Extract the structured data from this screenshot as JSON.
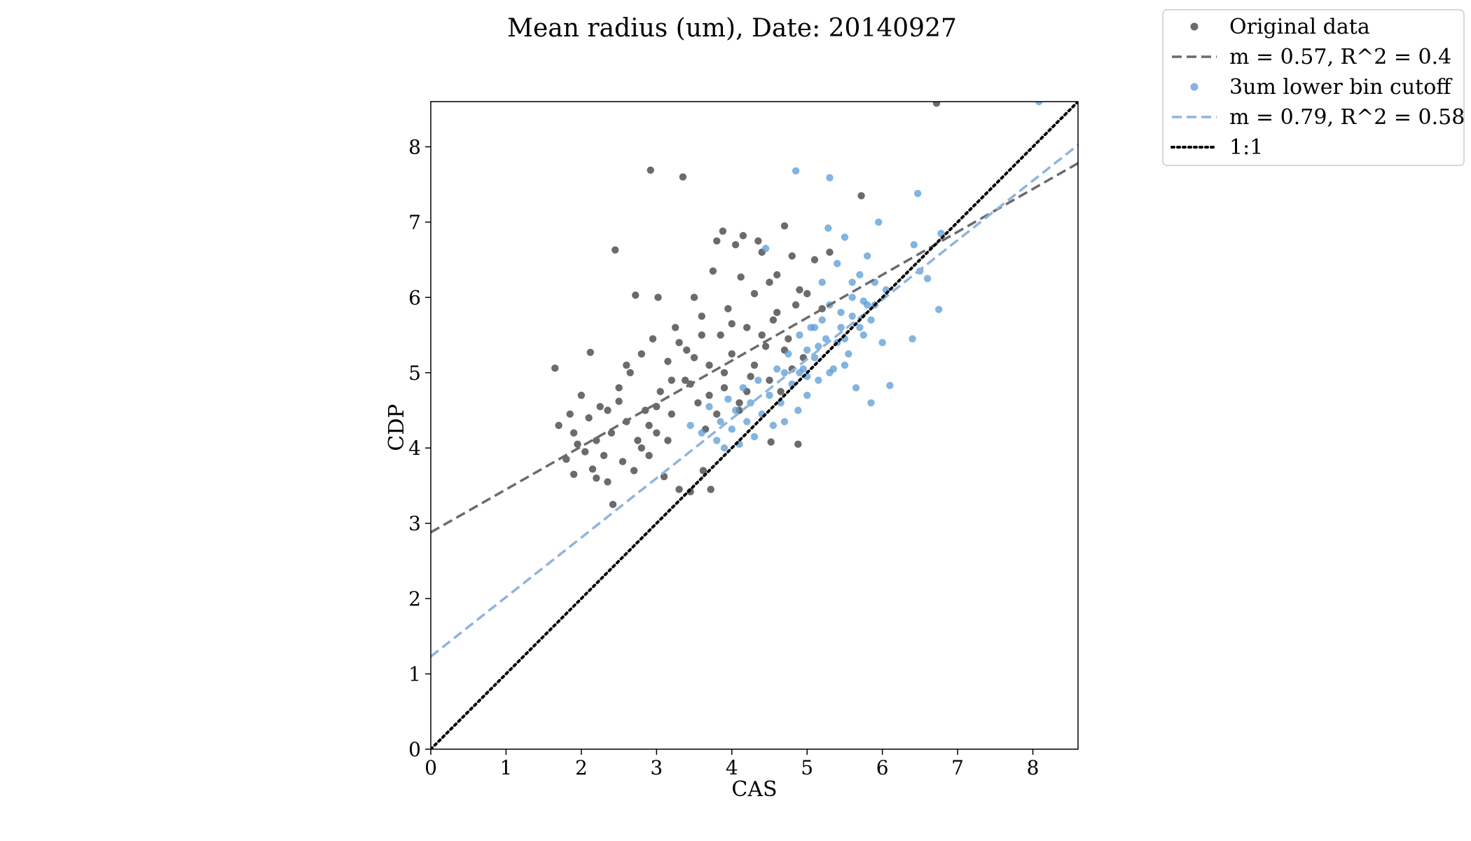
{
  "chart_data": {
    "type": "scatter",
    "title": "Mean radius (um), Date: 20140927",
    "xlabel": "CAS",
    "ylabel": "CDP",
    "xlim": [
      0,
      8.6
    ],
    "ylim": [
      0,
      8.6
    ],
    "x_ticks": [
      "0",
      "1",
      "2",
      "3",
      "4",
      "5",
      "6",
      "7",
      "8"
    ],
    "y_ticks": [
      "0",
      "1",
      "2",
      "3",
      "4",
      "5",
      "6",
      "7",
      "8"
    ],
    "grid": false,
    "legend_position": "outside-top-right",
    "colors": {
      "original": "#6b6b6b",
      "cutoff": "#5b9bd5",
      "original_fit": "#6b6b6b",
      "cutoff_fit": "#8fb4dc",
      "one_to_one": "#000000"
    },
    "series": [
      {
        "name": "Original data",
        "kind": "scatter",
        "points": [
          [
            1.65,
            5.06
          ],
          [
            1.7,
            4.3
          ],
          [
            1.8,
            3.85
          ],
          [
            1.85,
            4.45
          ],
          [
            1.9,
            3.65
          ],
          [
            1.95,
            4.05
          ],
          [
            2.0,
            4.7
          ],
          [
            2.05,
            3.95
          ],
          [
            2.1,
            4.4
          ],
          [
            2.12,
            5.27
          ],
          [
            2.15,
            3.72
          ],
          [
            2.2,
            4.1
          ],
          [
            2.25,
            4.55
          ],
          [
            2.3,
            3.9
          ],
          [
            2.35,
            3.55
          ],
          [
            2.4,
            4.2
          ],
          [
            2.42,
            3.25
          ],
          [
            2.45,
            6.63
          ],
          [
            2.5,
            4.62
          ],
          [
            2.55,
            3.82
          ],
          [
            2.6,
            4.35
          ],
          [
            2.65,
            5.0
          ],
          [
            2.7,
            3.7
          ],
          [
            2.72,
            6.03
          ],
          [
            2.75,
            4.1
          ],
          [
            2.8,
            5.25
          ],
          [
            2.85,
            4.5
          ],
          [
            2.9,
            3.9
          ],
          [
            2.92,
            7.69
          ],
          [
            2.95,
            5.45
          ],
          [
            3.0,
            4.2
          ],
          [
            3.02,
            6.0
          ],
          [
            3.05,
            4.75
          ],
          [
            3.1,
            3.62
          ],
          [
            3.15,
            5.15
          ],
          [
            3.2,
            4.45
          ],
          [
            3.25,
            5.6
          ],
          [
            3.3,
            3.45
          ],
          [
            3.35,
            7.6
          ],
          [
            3.38,
            4.9
          ],
          [
            3.4,
            5.3
          ],
          [
            3.45,
            3.42
          ],
          [
            3.5,
            6.0
          ],
          [
            3.55,
            4.6
          ],
          [
            3.6,
            5.75
          ],
          [
            3.62,
            3.7
          ],
          [
            3.65,
            4.25
          ],
          [
            3.7,
            5.1
          ],
          [
            3.72,
            3.45
          ],
          [
            3.75,
            6.35
          ],
          [
            3.8,
            6.75
          ],
          [
            3.85,
            5.5
          ],
          [
            3.88,
            6.88
          ],
          [
            3.9,
            4.8
          ],
          [
            3.95,
            5.85
          ],
          [
            4.0,
            5.25
          ],
          [
            4.05,
            6.7
          ],
          [
            4.1,
            4.5
          ],
          [
            4.12,
            6.27
          ],
          [
            4.15,
            6.82
          ],
          [
            4.2,
            5.6
          ],
          [
            4.25,
            4.95
          ],
          [
            4.3,
            6.05
          ],
          [
            4.35,
            6.75
          ],
          [
            4.4,
            6.6
          ],
          [
            4.45,
            5.35
          ],
          [
            4.5,
            6.2
          ],
          [
            4.52,
            4.08
          ],
          [
            4.55,
            5.7
          ],
          [
            4.6,
            6.3
          ],
          [
            4.65,
            4.75
          ],
          [
            4.7,
            6.95
          ],
          [
            4.75,
            5.45
          ],
          [
            4.8,
            6.55
          ],
          [
            4.85,
            5.9
          ],
          [
            4.88,
            4.05
          ],
          [
            4.9,
            6.1
          ],
          [
            4.95,
            5.2
          ],
          [
            5.0,
            6.05
          ],
          [
            5.1,
            6.5
          ],
          [
            5.2,
            5.85
          ],
          [
            5.3,
            6.6
          ],
          [
            5.72,
            7.35
          ],
          [
            6.72,
            8.58
          ],
          [
            2.2,
            3.6
          ],
          [
            2.5,
            4.8
          ],
          [
            2.8,
            4.0
          ],
          [
            3.0,
            4.55
          ],
          [
            3.2,
            4.9
          ],
          [
            3.5,
            5.2
          ],
          [
            3.7,
            4.7
          ],
          [
            3.9,
            5.0
          ],
          [
            4.1,
            4.6
          ],
          [
            4.3,
            5.1
          ],
          [
            4.5,
            4.9
          ],
          [
            4.7,
            5.3
          ],
          [
            2.6,
            5.1
          ],
          [
            3.3,
            5.4
          ],
          [
            3.6,
            5.5
          ],
          [
            4.0,
            5.65
          ],
          [
            4.4,
            5.5
          ],
          [
            4.6,
            5.8
          ],
          [
            1.9,
            4.2
          ],
          [
            2.35,
            4.5
          ],
          [
            2.9,
            4.3
          ],
          [
            3.15,
            4.1
          ],
          [
            3.45,
            4.85
          ],
          [
            3.8,
            4.45
          ],
          [
            4.2,
            4.75
          ],
          [
            4.8,
            5.05
          ]
        ]
      },
      {
        "name": "m = 0.57, R^2 = 0.4",
        "kind": "line",
        "style": "dashed",
        "slope": 0.57,
        "intercept": 2.88
      },
      {
        "name": "3um lower bin cutoff",
        "kind": "scatter",
        "points": [
          [
            3.45,
            4.3
          ],
          [
            3.6,
            4.2
          ],
          [
            3.7,
            4.55
          ],
          [
            3.8,
            4.1
          ],
          [
            3.85,
            4.35
          ],
          [
            3.9,
            4.0
          ],
          [
            3.95,
            4.65
          ],
          [
            4.0,
            4.25
          ],
          [
            4.05,
            4.5
          ],
          [
            4.1,
            4.05
          ],
          [
            4.15,
            4.8
          ],
          [
            4.2,
            4.35
          ],
          [
            4.25,
            4.6
          ],
          [
            4.3,
            4.15
          ],
          [
            4.35,
            4.9
          ],
          [
            4.4,
            4.45
          ],
          [
            4.45,
            6.65
          ],
          [
            4.5,
            4.7
          ],
          [
            4.55,
            4.3
          ],
          [
            4.6,
            5.05
          ],
          [
            4.65,
            4.6
          ],
          [
            4.7,
            4.35
          ],
          [
            4.75,
            5.25
          ],
          [
            4.8,
            4.85
          ],
          [
            4.85,
            7.68
          ],
          [
            4.88,
            4.5
          ],
          [
            4.9,
            5.5
          ],
          [
            4.95,
            5.05
          ],
          [
            5.0,
            4.7
          ],
          [
            5.05,
            5.6
          ],
          [
            5.1,
            5.2
          ],
          [
            5.15,
            4.9
          ],
          [
            5.2,
            6.2
          ],
          [
            5.25,
            5.45
          ],
          [
            5.28,
            6.92
          ],
          [
            5.3,
            7.59
          ],
          [
            5.35,
            5.05
          ],
          [
            5.4,
            6.45
          ],
          [
            5.45,
            5.6
          ],
          [
            5.5,
            6.8
          ],
          [
            5.55,
            5.25
          ],
          [
            5.6,
            6.0
          ],
          [
            5.65,
            4.8
          ],
          [
            5.7,
            6.3
          ],
          [
            5.75,
            5.5
          ],
          [
            5.8,
            6.55
          ],
          [
            5.85,
            4.6
          ],
          [
            5.9,
            5.9
          ],
          [
            5.95,
            7.0
          ],
          [
            6.0,
            5.4
          ],
          [
            6.05,
            6.1
          ],
          [
            6.1,
            4.83
          ],
          [
            6.4,
            5.45
          ],
          [
            6.42,
            6.7
          ],
          [
            6.47,
            7.38
          ],
          [
            6.5,
            6.35
          ],
          [
            6.6,
            6.25
          ],
          [
            6.75,
            5.84
          ],
          [
            6.78,
            6.85
          ],
          [
            8.08,
            8.6
          ],
          [
            5.0,
            5.3
          ],
          [
            5.2,
            5.7
          ],
          [
            5.4,
            5.4
          ],
          [
            5.6,
            5.75
          ],
          [
            5.8,
            5.9
          ],
          [
            5.3,
            5.0
          ],
          [
            5.5,
            5.1
          ],
          [
            5.7,
            5.6
          ],
          [
            4.9,
            5.0
          ],
          [
            5.1,
            5.6
          ],
          [
            5.6,
            6.2
          ],
          [
            5.9,
            6.2
          ],
          [
            5.3,
            5.9
          ],
          [
            4.7,
            5.0
          ],
          [
            5.0,
            4.95
          ],
          [
            5.5,
            5.45
          ],
          [
            5.75,
            5.95
          ],
          [
            5.15,
            5.35
          ],
          [
            5.45,
            5.8
          ],
          [
            5.85,
            5.7
          ]
        ]
      },
      {
        "name": "m = 0.79, R^2 = 0.58",
        "kind": "line",
        "style": "dashed",
        "slope": 0.79,
        "intercept": 1.23
      },
      {
        "name": "1:1",
        "kind": "line",
        "style": "dotted",
        "slope": 1.0,
        "intercept": 0.0
      }
    ]
  }
}
